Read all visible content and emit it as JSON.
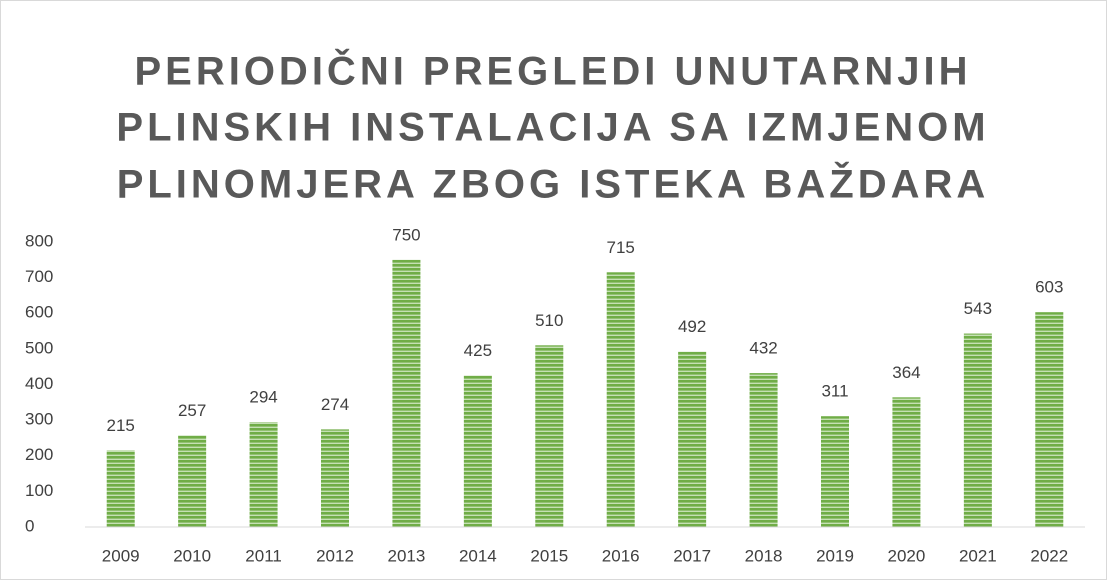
{
  "chart_data": {
    "type": "bar",
    "title": [
      "PERIODIČNI PREGLEDI UNUTARNJIH",
      "PLINSKIH INSTALACIJA SA IZMJENOM",
      "PLINOMJERA ZBOG ISTEKA BAŽDARA"
    ],
    "categories": [
      "2009",
      "2010",
      "2011",
      "2012",
      "2013",
      "2014",
      "2015",
      "2016",
      "2017",
      "2018",
      "2019",
      "2020",
      "2021",
      "2022"
    ],
    "values": [
      215,
      257,
      294,
      274,
      750,
      425,
      510,
      715,
      492,
      432,
      311,
      364,
      543,
      603
    ],
    "color": "#70ad47",
    "ylim": [
      0,
      800
    ],
    "yticks": [
      0,
      100,
      200,
      300,
      400,
      500,
      600,
      700,
      800
    ],
    "grid": false
  }
}
